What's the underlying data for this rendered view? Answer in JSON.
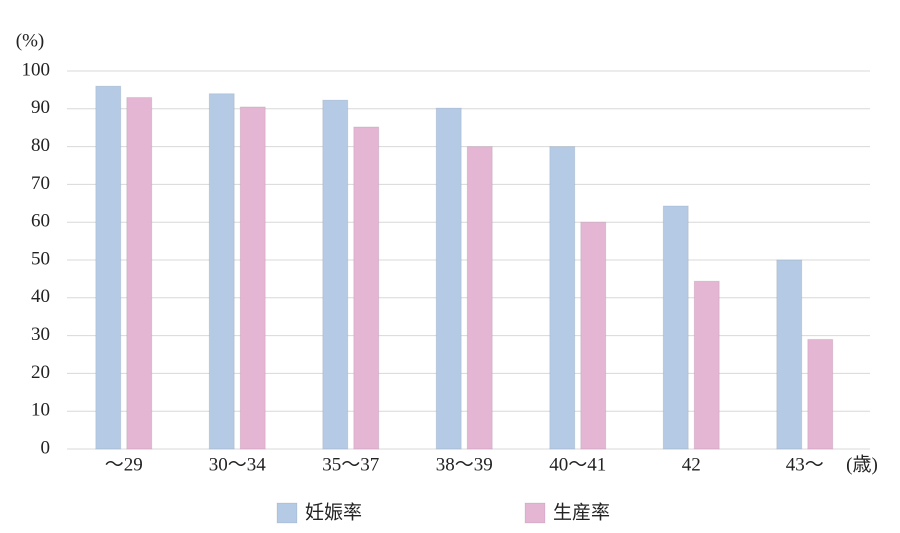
{
  "chart_data": {
    "type": "bar",
    "y_label": "(%)",
    "x_label": "(歳)",
    "categories": [
      "〜29",
      "30〜34",
      "35〜37",
      "38〜39",
      "40〜41",
      "42",
      "43〜"
    ],
    "series": [
      {
        "name": "妊娠率",
        "color": "#b5cae5",
        "values": [
          96,
          94,
          92.3,
          90.2,
          80,
          64.3,
          50
        ]
      },
      {
        "name": "生産率",
        "color": "#e4b6d4",
        "values": [
          93,
          90.5,
          85.2,
          80,
          60,
          44.4,
          29
        ]
      }
    ],
    "ylim": [
      0,
      100
    ],
    "yticks": [
      0,
      10,
      20,
      30,
      40,
      50,
      60,
      70,
      80,
      90,
      100
    ],
    "grid": true,
    "legend": "bottom"
  }
}
